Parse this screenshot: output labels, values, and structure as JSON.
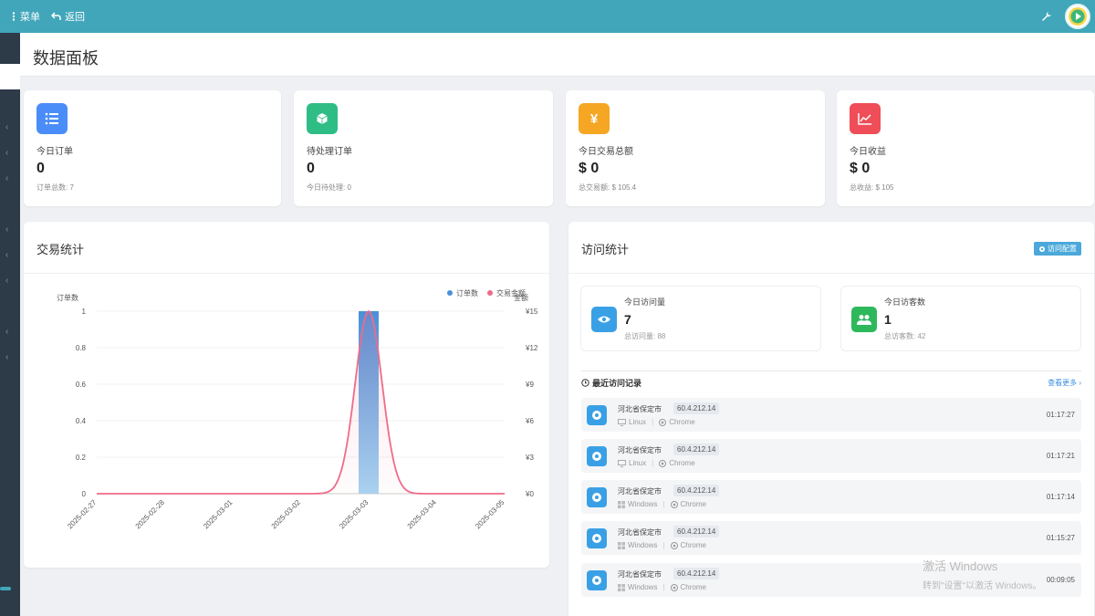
{
  "topbar": {
    "menu_label": "菜单",
    "back_label": "返回"
  },
  "page_title": "数据面板",
  "stats": [
    {
      "label": "今日订单",
      "value": "0",
      "sub": "订单总数: 7",
      "icon": "list-icon",
      "color": "#4b8df8"
    },
    {
      "label": "待处理订单",
      "value": "0",
      "sub": "今日待处理: 0",
      "icon": "cube-icon",
      "color": "#2ebd85"
    },
    {
      "label": "今日交易总额",
      "value": "$ 0",
      "sub": "总交易额: $ 105.4",
      "icon": "yen-icon",
      "color": "#f5a623"
    },
    {
      "label": "今日收益",
      "value": "$ 0",
      "sub": "总收益: $ 105",
      "icon": "trend-icon",
      "color": "#ef4d57"
    }
  ],
  "trade_panel": {
    "title": "交易统计"
  },
  "visit_panel": {
    "title": "访问统计",
    "config_button": "访问配置",
    "today_visits": {
      "label": "今日访问量",
      "value": "7",
      "sub": "总访问量: 88"
    },
    "today_visitors": {
      "label": "今日访客数",
      "value": "1",
      "sub": "总访客数: 42"
    },
    "records_title": "最近访问记录",
    "more_link": "查看更多 ›",
    "records": [
      {
        "location": "河北省保定市",
        "ip": "60.4.212.14",
        "os": "Linux",
        "browser": "Chrome",
        "time": "01:17:27"
      },
      {
        "location": "河北省保定市",
        "ip": "60.4.212.14",
        "os": "Linux",
        "browser": "Chrome",
        "time": "01:17:21"
      },
      {
        "location": "河北省保定市",
        "ip": "60.4.212.14",
        "os": "Windows",
        "browser": "Chrome",
        "time": "01:17:14"
      },
      {
        "location": "河北省保定市",
        "ip": "60.4.212.14",
        "os": "Windows",
        "browser": "Chrome",
        "time": "01:15:27"
      },
      {
        "location": "河北省保定市",
        "ip": "60.4.212.14",
        "os": "Windows",
        "browser": "Chrome",
        "time": "00:09:05"
      }
    ]
  },
  "watermark": {
    "line1": "激活 Windows",
    "line2": "转到\"设置\"以激活 Windows。"
  },
  "chart_data": {
    "type": "bar",
    "categories": [
      "2025-02-27",
      "2025-02-28",
      "2025-03-01",
      "2025-03-02",
      "2025-03-03",
      "2025-03-04",
      "2025-03-05"
    ],
    "series": [
      {
        "name": "订单数",
        "type": "bar",
        "axis": "left",
        "color": "#4a90d9",
        "values": [
          0,
          0,
          0,
          0,
          1,
          0,
          0
        ]
      },
      {
        "name": "交易金额",
        "type": "line",
        "axis": "right",
        "color": "#ef6b8a",
        "smooth": true,
        "values": [
          0,
          0,
          0,
          0,
          15,
          0,
          0
        ]
      }
    ],
    "ylabel": "订单数",
    "ylabel_right": "金额",
    "ylim": [
      0,
      1
    ],
    "ylim_right": [
      0,
      15
    ],
    "yticks": [
      "0",
      "0.2",
      "0.4",
      "0.6",
      "0.8",
      "1"
    ],
    "yticks_right": [
      "¥0",
      "¥3",
      "¥6",
      "¥9",
      "¥12",
      "¥15"
    ],
    "legend": "top-right",
    "grid": true
  }
}
